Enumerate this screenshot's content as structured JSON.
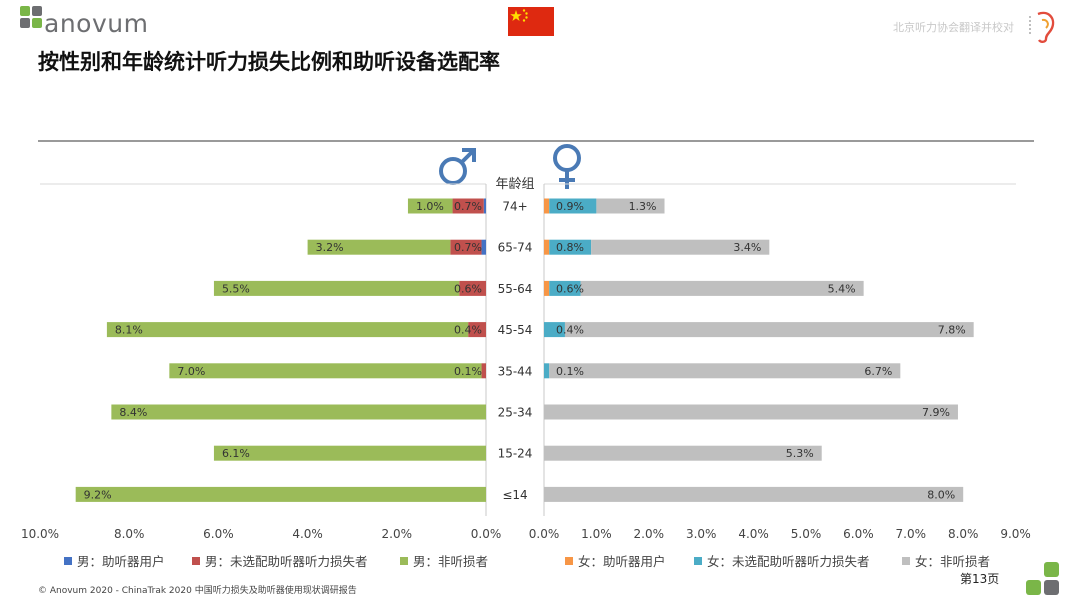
{
  "header": {
    "logo_text": "anovum",
    "title": "按性别和年龄统计听力损失比例和助听设备选配率",
    "partner_text": "北京听力协会翻译并校对"
  },
  "footer": {
    "copyright": "© Anovum 2020 - ChinaTrak 2020 中国听力损失及助听器使用现状调研报告",
    "page_number": "第13页"
  },
  "colors": {
    "male_user": "#4472c4",
    "male_unfitted": "#c0504d",
    "male_non": "#9bbb59",
    "female_user": "#f79646",
    "female_unfitted": "#4bacc6",
    "female_non": "#bfbfbf",
    "gender_symbol": "#4a7ab5",
    "logo_green": "#7ab648",
    "logo_gray": "#6d6e71"
  },
  "legend": {
    "male_user": "男：助听器用户",
    "male_unfitted": "男：未选配助听器听力损失者",
    "male_non": "男：非听损者",
    "female_user": "女：助听器用户",
    "female_unfitted": "女：未选配助听器听力损失者",
    "female_non": "女：非听损者"
  },
  "chart_data": {
    "type": "bar",
    "orientation": "horizontal",
    "layout": "butterfly",
    "title": "按性别和年龄统计听力损失比例和助听设备选配率",
    "category_axis_label": "年龄组",
    "categories": [
      "74+",
      "65-74",
      "55-64",
      "45-54",
      "35-44",
      "25-34",
      "15-24",
      "≤14"
    ],
    "left_panel": {
      "gender": "男",
      "xlim": [
        10,
        0
      ],
      "ticks": [
        "10.0%",
        "8.0%",
        "6.0%",
        "4.0%",
        "2.0%",
        "0.0%"
      ],
      "series": [
        {
          "name": "男：助听器用户",
          "values": [
            0.05,
            0.1,
            0.0,
            0.0,
            0.0,
            0.0,
            0.0,
            0.0
          ],
          "labels": [
            "",
            "",
            "",
            "",
            "",
            "",
            "",
            ""
          ]
        },
        {
          "name": "男：未选配助听器听力损失者",
          "values": [
            0.7,
            0.7,
            0.6,
            0.4,
            0.1,
            0.0,
            0.0,
            0.0
          ],
          "labels": [
            "0.7%",
            "0.7%",
            "0.6%",
            "0.4%",
            "0.1%",
            "",
            "",
            ""
          ]
        },
        {
          "name": "男：非听损者",
          "values": [
            1.0,
            3.2,
            5.5,
            8.1,
            7.0,
            8.4,
            6.1,
            9.2
          ],
          "labels": [
            "1.0%",
            "3.2%",
            "5.5%",
            "8.1%",
            "7.0%",
            "8.4%",
            "6.1%",
            "9.2%"
          ]
        }
      ]
    },
    "right_panel": {
      "gender": "女",
      "xlim": [
        0,
        9
      ],
      "ticks": [
        "0.0%",
        "1.0%",
        "2.0%",
        "3.0%",
        "4.0%",
        "5.0%",
        "6.0%",
        "7.0%",
        "8.0%",
        "9.0%"
      ],
      "series": [
        {
          "name": "女：助听器用户",
          "values": [
            0.1,
            0.1,
            0.1,
            0.0,
            0.0,
            0.0,
            0.0,
            0.0
          ],
          "labels": [
            "",
            "",
            "",
            "",
            "",
            "",
            "",
            ""
          ]
        },
        {
          "name": "女：未选配助听器听力损失者",
          "values": [
            0.9,
            0.8,
            0.6,
            0.4,
            0.1,
            0.0,
            0.0,
            0.0
          ],
          "labels": [
            "0.9%",
            "0.8%",
            "0.6%",
            "0.4%",
            "0.1%",
            "",
            "",
            ""
          ]
        },
        {
          "name": "女：非听损者",
          "values": [
            1.3,
            3.4,
            5.4,
            7.8,
            6.7,
            7.9,
            5.3,
            8.0
          ],
          "labels": [
            "1.3%",
            "3.4%",
            "5.4%",
            "7.8%",
            "6.7%",
            "7.9%",
            "5.3%",
            "8.0%"
          ]
        }
      ]
    }
  }
}
